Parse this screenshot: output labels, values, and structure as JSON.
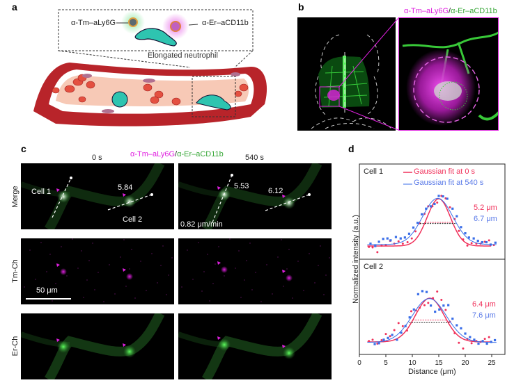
{
  "panels": {
    "a": {
      "label": "a",
      "probe_tm": "α-Tm–aLy6G",
      "probe_er": "α-Er–aCD11b",
      "cell_caption": "Elongated neutrophil"
    },
    "b": {
      "label": "b",
      "title_tm": "α-Tm–aLy6G",
      "title_sep": "/",
      "title_er": "α-Er–aCD11b"
    },
    "c": {
      "label": "c",
      "title_tm": "α-Tm–aLy6G",
      "title_sep": "/",
      "title_er": "α-Er–aCD11b",
      "columns": [
        "0 s",
        "540 s"
      ],
      "rows": [
        "Merge",
        "Tm-Ch",
        "Er-Ch"
      ],
      "annotations": {
        "cell1": "Cell 1",
        "cell2": "Cell 2",
        "t0_cell2_value": "5.84",
        "t540_cell1_value": "5.53",
        "t540_cell2_value": "6.12",
        "speed": "0.82 μm/min"
      },
      "scale_bar": "50 μm"
    },
    "d": {
      "label": "d"
    }
  },
  "colors": {
    "tm": "#e020e0",
    "er": "#3aa83a",
    "fit0": "#f0305a",
    "fit540": "#3a6ee8"
  },
  "chart_data": {
    "type": "scatter",
    "xlabel": "Distance (μm)",
    "ylabel": "Normalized intensity (a.u.)",
    "xlim": [
      0,
      27
    ],
    "xticks": [
      "0",
      "5",
      "10",
      "15",
      "20",
      "25"
    ],
    "legend": [
      "Gaussian fit at 0 s",
      "Gaussian fit at 540 s"
    ],
    "legend_placement": "top",
    "subplots": [
      {
        "title": "Cell 1",
        "fwhm_labels": [
          "5.2 μm",
          "6.7 μm"
        ],
        "series": [
          {
            "name": "Gaussian fit at 0 s",
            "fit": {
              "center": 15.0,
              "fwhm": 5.2,
              "amplitude": 1.0,
              "baseline": 0.0
            },
            "points": [
              [
                1.8,
                -0.02
              ],
              [
                2.5,
                -0.03
              ],
              [
                3.4,
                -0.13
              ],
              [
                4.2,
                0.01
              ],
              [
                5.0,
                0.02
              ],
              [
                5.8,
                0.11
              ],
              [
                6.6,
                0.05
              ],
              [
                7.4,
                0.1
              ],
              [
                8.2,
                0.05
              ],
              [
                9.1,
                0.08
              ],
              [
                9.9,
                0.16
              ],
              [
                10.6,
                0.31
              ],
              [
                11.4,
                0.48
              ],
              [
                12.3,
                0.68
              ],
              [
                13.0,
                0.84
              ],
              [
                13.8,
                0.84
              ],
              [
                14.7,
                0.92
              ],
              [
                15.5,
                1.06
              ],
              [
                16.3,
                1.01
              ],
              [
                17.1,
                0.82
              ],
              [
                18.0,
                0.57
              ],
              [
                18.8,
                0.32
              ],
              [
                19.6,
                0.14
              ],
              [
                20.4,
                0.01
              ],
              [
                21.2,
                0.06
              ],
              [
                22.1,
                0.05
              ],
              [
                22.9,
                0.05
              ],
              [
                23.7,
                0.09
              ],
              [
                24.5,
                0.12
              ],
              [
                25.4,
                0.02
              ]
            ]
          },
          {
            "name": "Gaussian fit at 540 s",
            "fit": {
              "center": 14.8,
              "fwhm": 6.7,
              "amplitude": 0.98,
              "baseline": 0.03
            },
            "points": [
              [
                2.1,
                0.05
              ],
              [
                3.0,
                0.0
              ],
              [
                3.7,
                0.09
              ],
              [
                4.5,
                0.15
              ],
              [
                5.3,
                0.16
              ],
              [
                5.9,
                0.12
              ],
              [
                6.9,
                0.19
              ],
              [
                7.8,
                0.16
              ],
              [
                8.6,
                0.18
              ],
              [
                9.4,
                0.26
              ],
              [
                10.2,
                0.39
              ],
              [
                11.0,
                0.49
              ],
              [
                11.8,
                0.67
              ],
              [
                12.6,
                0.79
              ],
              [
                13.5,
                0.84
              ],
              [
                14.2,
                0.89
              ],
              [
                15.0,
                1.06
              ],
              [
                15.8,
                1.05
              ],
              [
                16.6,
                1.0
              ],
              [
                17.6,
                0.79
              ],
              [
                18.4,
                0.63
              ],
              [
                19.2,
                0.4
              ],
              [
                20.0,
                0.27
              ],
              [
                20.7,
                0.18
              ],
              [
                21.6,
                0.16
              ],
              [
                22.4,
                0.11
              ],
              [
                23.2,
                0.08
              ],
              [
                24.0,
                0.08
              ],
              [
                24.8,
                0.03
              ],
              [
                25.7,
                0.07
              ]
            ]
          }
        ]
      },
      {
        "title": "Cell 2",
        "fwhm_labels": [
          "6.4 μm",
          "7.6 μm"
        ],
        "series": [
          {
            "name": "Gaussian fit at 0 s",
            "fit": {
              "center": 13.3,
              "fwhm": 6.4,
              "amplitude": 1.0,
              "baseline": 0.0
            },
            "points": [
              [
                1.8,
                0.02
              ],
              [
                2.5,
                0.05
              ],
              [
                3.4,
                -0.04
              ],
              [
                4.2,
                0.04
              ],
              [
                5.0,
                0.18
              ],
              [
                5.8,
                0.13
              ],
              [
                6.6,
                0.27
              ],
              [
                7.4,
                0.43
              ],
              [
                8.2,
                0.36
              ],
              [
                9.0,
                0.26
              ],
              [
                9.8,
                0.7
              ],
              [
                10.7,
                0.72
              ],
              [
                11.4,
                0.78
              ],
              [
                12.3,
                0.84
              ],
              [
                13.0,
                0.89
              ],
              [
                13.9,
                1.0
              ],
              [
                14.7,
                1.15
              ],
              [
                15.5,
                0.96
              ],
              [
                16.3,
                0.73
              ],
              [
                17.1,
                0.46
              ],
              [
                18.0,
                0.2
              ],
              [
                18.8,
                -0.02
              ],
              [
                19.6,
                -0.15
              ],
              [
                20.4,
                0.07
              ],
              [
                21.2,
                -0.03
              ],
              [
                22.1,
                0.02
              ],
              [
                22.9,
                0.0
              ],
              [
                23.7,
                0.07
              ],
              [
                24.5,
                0.11
              ]
            ]
          },
          {
            "name": "Gaussian fit at 540 s",
            "fit": {
              "center": 13.2,
              "fwhm": 7.6,
              "amplitude": 1.0,
              "baseline": -0.01
            },
            "points": [
              [
                2.9,
                -0.05
              ],
              [
                3.7,
                -0.03
              ],
              [
                4.6,
                0.05
              ],
              [
                5.4,
                0.09
              ],
              [
                6.2,
                0.16
              ],
              [
                7.1,
                0.05
              ],
              [
                7.9,
                0.21
              ],
              [
                8.7,
                0.36
              ],
              [
                9.5,
                0.56
              ],
              [
                10.3,
                0.74
              ],
              [
                11.1,
                1.09
              ],
              [
                11.9,
                1.16
              ],
              [
                12.7,
                1.14
              ],
              [
                13.5,
                0.83
              ],
              [
                14.3,
                0.69
              ],
              [
                15.1,
                0.74
              ],
              [
                15.9,
                0.83
              ],
              [
                16.8,
                0.84
              ],
              [
                17.6,
                0.53
              ],
              [
                18.4,
                0.38
              ],
              [
                19.2,
                0.31
              ],
              [
                20.0,
                0.19
              ],
              [
                20.9,
                0.11
              ],
              [
                21.7,
                0.05
              ],
              [
                22.5,
                -0.04
              ],
              [
                23.3,
                0.02
              ],
              [
                24.1,
                -0.04
              ],
              [
                24.9,
                0.0
              ],
              [
                25.6,
                0.04
              ]
            ]
          }
        ]
      }
    ]
  }
}
